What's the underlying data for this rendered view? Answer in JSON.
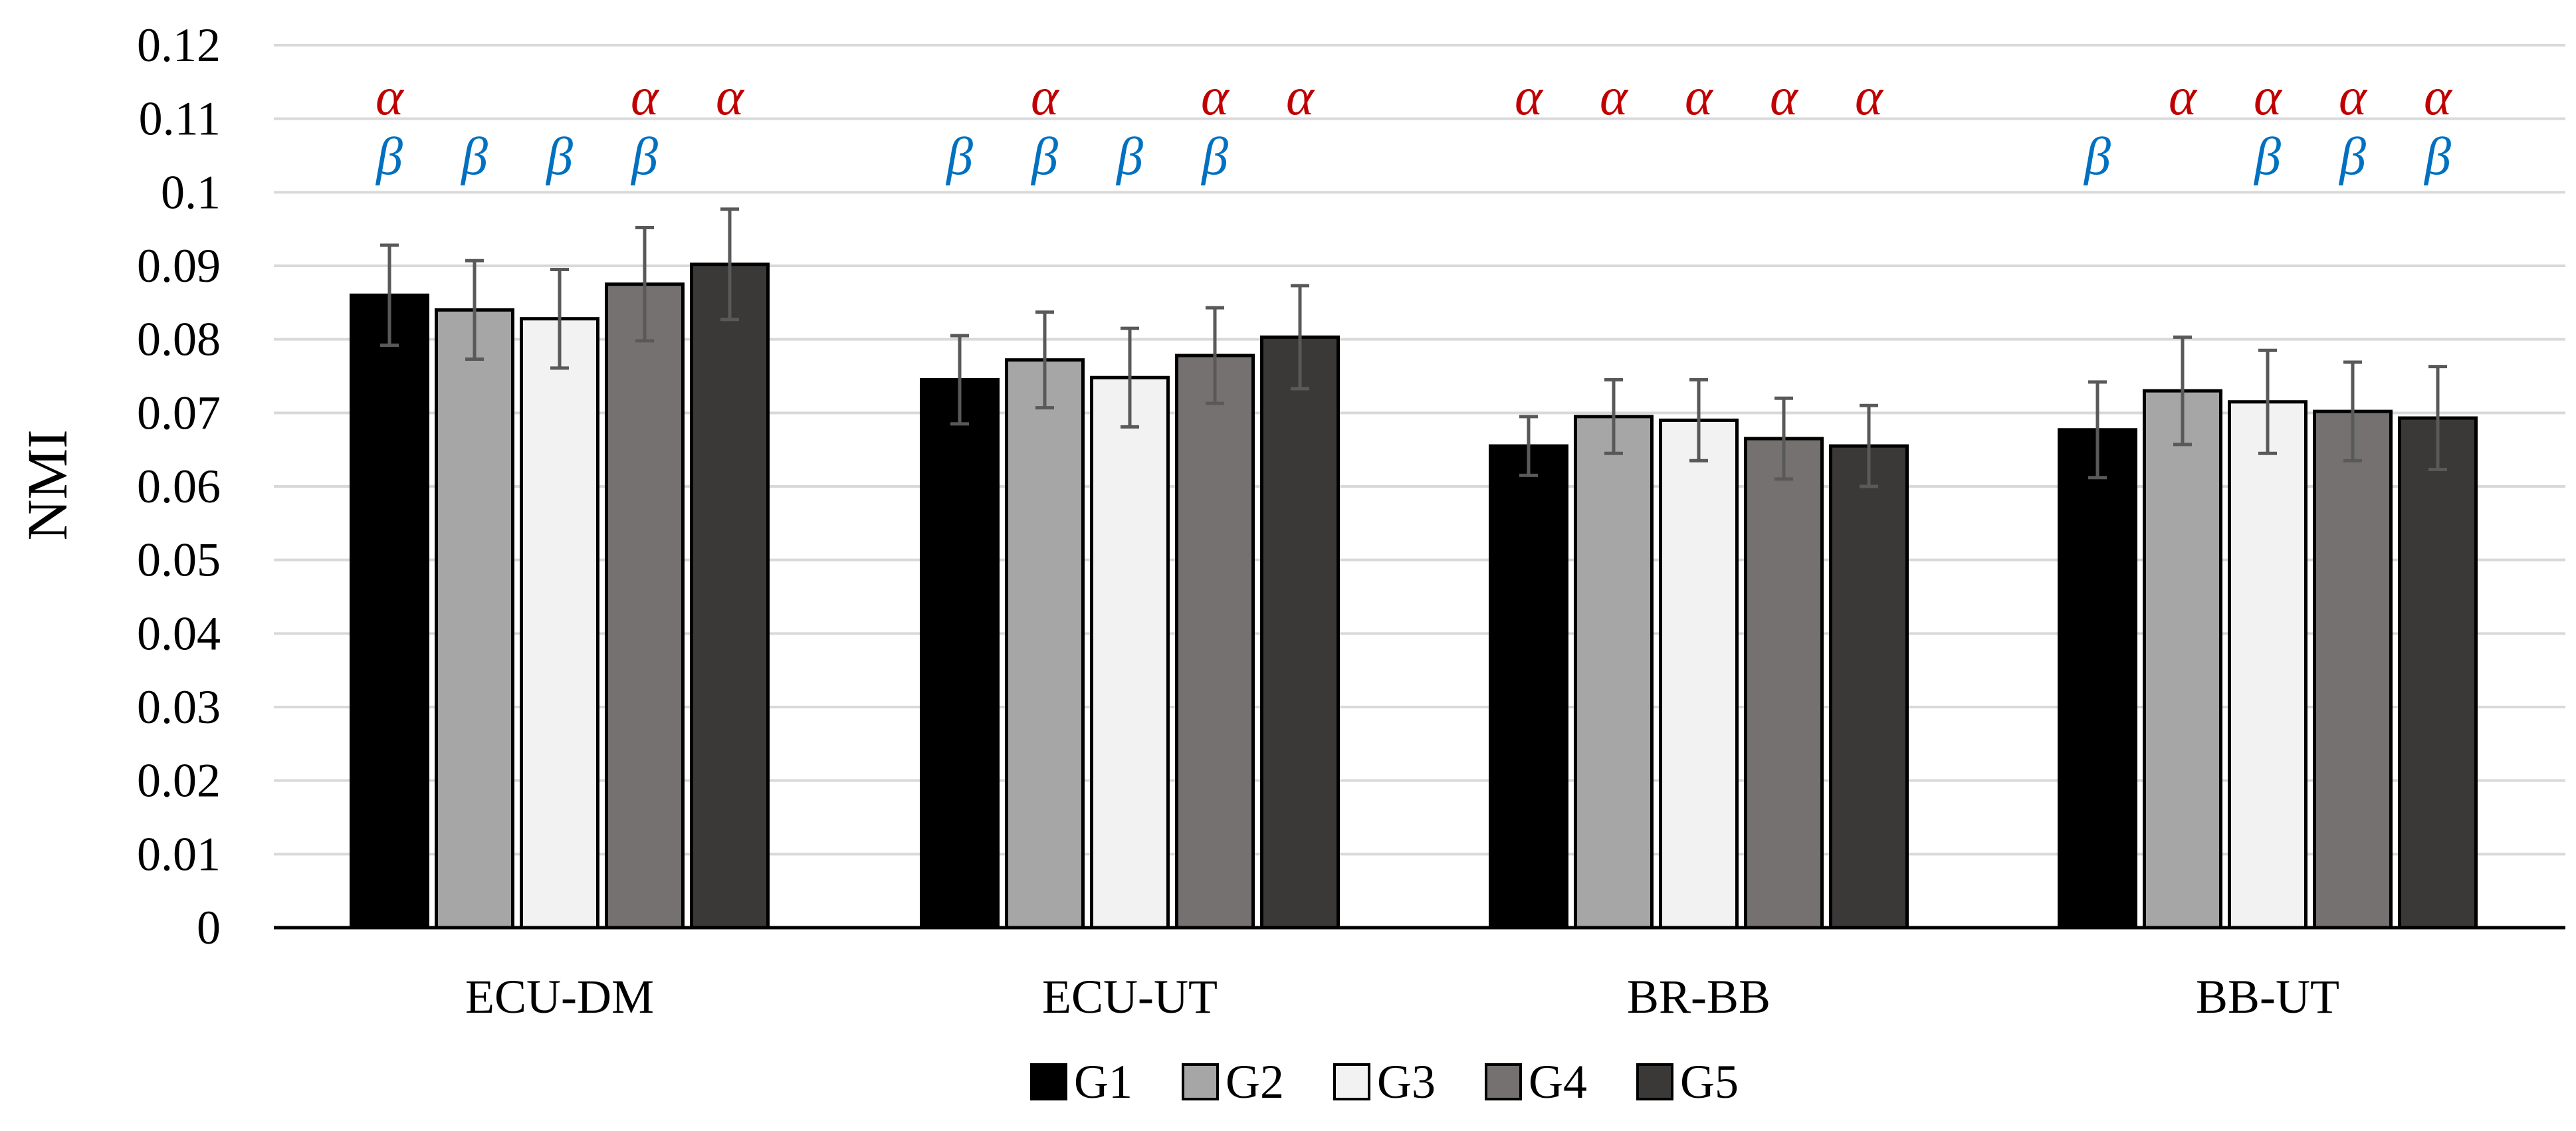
{
  "chart_data": {
    "type": "bar",
    "ylabel": "NMI",
    "xlabel": "",
    "title": "",
    "ylim": [
      0,
      0.12
    ],
    "yticks": [
      "0",
      "0.01",
      "0.02",
      "0.03",
      "0.04",
      "0.05",
      "0.06",
      "0.07",
      "0.08",
      "0.09",
      "0.1",
      "0.11",
      "0.12"
    ],
    "grid": true,
    "legend_position": "bottom-center",
    "categories": [
      "ECU-DM",
      "ECU-UT",
      "BR-BB",
      "BB-UT"
    ],
    "series": [
      {
        "name": "G1",
        "color": "#000000",
        "values": [
          0.086,
          0.0745,
          0.0655,
          0.0677
        ],
        "errors": [
          0.0068,
          0.006,
          0.004,
          0.0065
        ]
      },
      {
        "name": "G2",
        "color": "#a6a6a6",
        "values": [
          0.084,
          0.0772,
          0.0695,
          0.073
        ],
        "errors": [
          0.0067,
          0.0065,
          0.005,
          0.0073
        ]
      },
      {
        "name": "G3",
        "color": "#f2f2f2",
        "values": [
          0.0828,
          0.0748,
          0.069,
          0.0715
        ],
        "errors": [
          0.0067,
          0.0067,
          0.0055,
          0.007
        ]
      },
      {
        "name": "G4",
        "color": "#767171",
        "values": [
          0.0875,
          0.0778,
          0.0665,
          0.0702
        ],
        "errors": [
          0.0077,
          0.0065,
          0.0055,
          0.0067
        ]
      },
      {
        "name": "G5",
        "color": "#3b3838",
        "values": [
          0.0902,
          0.0803,
          0.0655,
          0.0693
        ],
        "errors": [
          0.0075,
          0.007,
          0.0055,
          0.007
        ]
      }
    ],
    "significance": {
      "alpha_symbol": "α",
      "beta_symbol": "β",
      "alpha_color": "#c00000",
      "beta_color": "#0070c0",
      "alpha": [
        [
          true,
          false,
          false,
          true,
          true
        ],
        [
          false,
          true,
          false,
          true,
          true
        ],
        [
          true,
          true,
          true,
          true,
          true
        ],
        [
          false,
          true,
          true,
          true,
          true
        ]
      ],
      "beta": [
        [
          true,
          true,
          true,
          true,
          false
        ],
        [
          true,
          true,
          true,
          true,
          false
        ],
        [
          false,
          false,
          false,
          false,
          false
        ],
        [
          true,
          false,
          true,
          true,
          true
        ]
      ]
    }
  }
}
